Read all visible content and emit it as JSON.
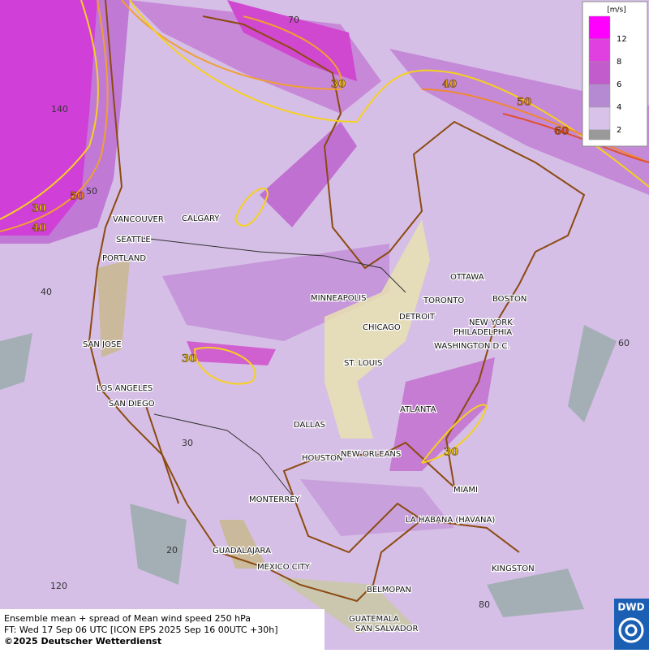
{
  "map": {
    "cities": [
      "VANCOUVER",
      "CALGARY",
      "SEATTLE",
      "PORTLAND",
      "MINNEAPOLIS",
      "OTTAWA",
      "TORONTO",
      "BOSTON",
      "DETROIT",
      "NEW YORK",
      "CHICAGO",
      "PHILADELPHIA",
      "SAN JOSE",
      "WASHINGTON D.C.",
      "ST. LOUIS",
      "LOS ANGELES",
      "SAN DIEGO",
      "ATLANTA",
      "DALLAS",
      "HOUSTON",
      "NEW ORLEANS",
      "MIAMI",
      "MONTERREY",
      "LA HABANA (HAVANA)",
      "GUADALAJARA",
      "MEXICO CITY",
      "KINGSTON",
      "BELMOPAN",
      "GUATEMALA",
      "SAN SALVADOR"
    ],
    "grid_labels": [
      70,
      50,
      40,
      30,
      20,
      60,
      80,
      120,
      140
    ],
    "contour_labels": [
      30,
      40,
      50,
      60,
      50,
      30,
      40,
      30,
      30
    ],
    "legend": {
      "unit": "[m/s]",
      "ticks": [
        12,
        8,
        6,
        4,
        2
      ],
      "colors": [
        "#ff00ff",
        "#e040e0",
        "#c25ccc",
        "#b58ad2",
        "#d8c2ea"
      ]
    },
    "footer": [
      "Ensemble mean + spread of Mean wind speed 250 hPa",
      "FT: Wed 17 Sep 06 UTC [ICON EPS 2025 Sep 16 00UTC +30h]",
      "©2025 Deutscher Wetterdienst"
    ],
    "logo": "DWD"
  }
}
